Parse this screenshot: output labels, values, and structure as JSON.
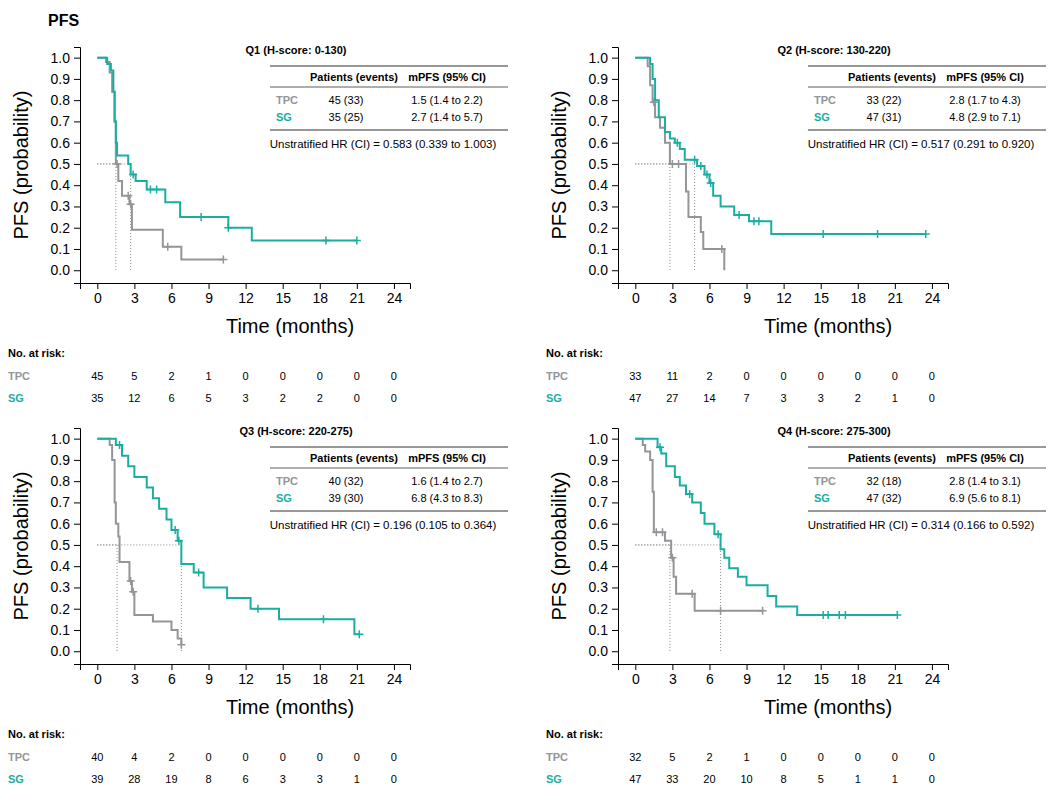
{
  "title": "PFS",
  "chart_data": [
    {
      "type": "step",
      "title": "Q1 (H-score: 0-130)",
      "x_label": "Time (months)",
      "y_label": "PFS (probability)",
      "xlim": [
        -1.4,
        25.3
      ],
      "xticks": [
        0,
        3,
        6,
        9,
        12,
        15,
        18,
        21,
        24
      ],
      "ylim": [
        -0.06,
        1.05
      ],
      "yticks": [
        {
          "value": 0,
          "label": "0.0"
        },
        {
          "value": 0.1,
          "label": "0.1"
        },
        {
          "value": 0.2,
          "label": "0.2"
        },
        {
          "value": 0.3,
          "label": "0.3"
        },
        {
          "value": 0.4,
          "label": "0.4"
        },
        {
          "value": 0.5,
          "label": "0.5"
        },
        {
          "value": 0.6,
          "label": "0.6"
        },
        {
          "value": 0.7,
          "label": "0.7"
        },
        {
          "value": 0.8,
          "label": "0.8"
        },
        {
          "value": 0.9,
          "label": "0.9"
        },
        {
          "value": 1,
          "label": "1.0"
        }
      ],
      "median_probability": 0.5,
      "table_header": [
        "Patients (events)",
        "mPFS (95% CI)"
      ],
      "hr_text": "Unstratified HR (CI) = 0.583 (0.339 to 1.003)",
      "at_risk_title": "No. at risk:",
      "series": [
        {
          "name": "TPC",
          "color": "#939598",
          "marker": "plus",
          "x": [
            0,
            0.7,
            1.0,
            1.2,
            1.4,
            1.5,
            1.7,
            2.0,
            2.6,
            2.8,
            5.3,
            6.8,
            10.2
          ],
          "values": [
            1.0,
            0.98,
            0.93,
            0.84,
            0.7,
            0.5,
            0.42,
            0.35,
            0.31,
            0.19,
            0.11,
            0.05,
            0.05
          ],
          "censor_x": [
            1.6,
            2.5,
            2.7,
            5.7,
            10.2
          ],
          "censor_values": [
            0.5,
            0.35,
            0.31,
            0.11,
            0.05
          ],
          "median": 1.5,
          "patients_events": "45 (33)",
          "mpfs": "1.5 (1.4 to 2.2)",
          "at_risk": [
            45,
            5,
            2,
            1,
            0,
            0,
            0,
            0,
            0
          ]
        },
        {
          "name": "SG",
          "color": "#1aaea3",
          "marker": "plus",
          "x": [
            0,
            0.8,
            1.1,
            1.3,
            1.4,
            1.5,
            1.6,
            2.5,
            2.7,
            3.1,
            4.0,
            5.5,
            6.7,
            10.6,
            12.5,
            21.0
          ],
          "values": [
            1.0,
            0.97,
            0.94,
            0.84,
            0.7,
            0.6,
            0.54,
            0.5,
            0.45,
            0.42,
            0.38,
            0.32,
            0.25,
            0.2,
            0.14,
            0.14
          ],
          "censor_x": [
            2.9,
            4.3,
            4.8,
            8.4,
            10.6,
            18.5,
            21.0
          ],
          "censor_values": [
            0.45,
            0.38,
            0.38,
            0.25,
            0.2,
            0.14,
            0.14
          ],
          "median": 2.7,
          "patients_events": "35 (25)",
          "mpfs": "2.7 (1.4 to 5.7)",
          "at_risk": [
            35,
            12,
            6,
            5,
            3,
            2,
            2,
            0,
            0
          ]
        }
      ]
    },
    {
      "type": "step",
      "title": "Q2 (H-score: 130-220)",
      "x_label": "Time (months)",
      "y_label": "PFS (probability)",
      "xlim": [
        -1.4,
        25.3
      ],
      "xticks": [
        0,
        3,
        6,
        9,
        12,
        15,
        18,
        21,
        24
      ],
      "ylim": [
        -0.06,
        1.05
      ],
      "yticks": [
        {
          "value": 0,
          "label": "0.0"
        },
        {
          "value": 0.1,
          "label": "0.1"
        },
        {
          "value": 0.2,
          "label": "0.2"
        },
        {
          "value": 0.3,
          "label": "0.3"
        },
        {
          "value": 0.4,
          "label": "0.4"
        },
        {
          "value": 0.5,
          "label": "0.5"
        },
        {
          "value": 0.6,
          "label": "0.6"
        },
        {
          "value": 0.7,
          "label": "0.7"
        },
        {
          "value": 0.8,
          "label": "0.8"
        },
        {
          "value": 0.9,
          "label": "0.9"
        },
        {
          "value": 1,
          "label": "1.0"
        }
      ],
      "median_probability": 0.5,
      "table_header": [
        "Patients (events)",
        "mPFS (95% CI)"
      ],
      "hr_text": "Unstratified HR (CI) = 0.517 (0.291 to 0.920)",
      "at_risk_title": "No. at risk:",
      "series": [
        {
          "name": "TPC",
          "color": "#939598",
          "marker": "plus",
          "x": [
            0,
            1.0,
            1.2,
            1.4,
            1.6,
            2.0,
            2.4,
            2.8,
            4.1,
            4.3,
            5.3,
            5.5,
            7.2
          ],
          "values": [
            1.0,
            0.96,
            0.87,
            0.79,
            0.72,
            0.67,
            0.6,
            0.5,
            0.37,
            0.25,
            0.18,
            0.1,
            0.0
          ],
          "censor_x": [
            1.5,
            3.0,
            3.5,
            7.0
          ],
          "censor_values": [
            0.79,
            0.5,
            0.5,
            0.1
          ],
          "median": 2.8,
          "patients_events": "33 (22)",
          "mpfs": "2.8 (1.7 to 4.3)",
          "at_risk": [
            33,
            11,
            2,
            0,
            0,
            0,
            0,
            0,
            0
          ]
        },
        {
          "name": "SG",
          "color": "#1aaea3",
          "marker": "plus",
          "x": [
            0,
            1.2,
            1.4,
            1.6,
            1.9,
            2.4,
            2.8,
            3.2,
            3.6,
            4.0,
            5.0,
            5.6,
            6.0,
            6.3,
            6.9,
            8.0,
            9.2,
            11.0,
            23.5
          ],
          "values": [
            1.0,
            0.97,
            0.9,
            0.8,
            0.72,
            0.65,
            0.62,
            0.6,
            0.57,
            0.52,
            0.49,
            0.45,
            0.41,
            0.35,
            0.3,
            0.26,
            0.23,
            0.17,
            0.17
          ],
          "censor_x": [
            3.4,
            4.8,
            5.3,
            5.8,
            6.1,
            8.4,
            9.6,
            10.0,
            15.2,
            19.6,
            23.5
          ],
          "censor_values": [
            0.6,
            0.52,
            0.49,
            0.45,
            0.41,
            0.26,
            0.23,
            0.23,
            0.17,
            0.17,
            0.17
          ],
          "median": 4.8,
          "patients_events": "47 (31)",
          "mpfs": "4.8 (2.9 to 7.1)",
          "at_risk": [
            47,
            27,
            14,
            7,
            3,
            3,
            2,
            1,
            0
          ]
        }
      ]
    },
    {
      "type": "step",
      "title": "Q3 (H-score: 220-275)",
      "x_label": "Time (months)",
      "y_label": "PFS (probability)",
      "xlim": [
        -1.4,
        25.3
      ],
      "xticks": [
        0,
        3,
        6,
        9,
        12,
        15,
        18,
        21,
        24
      ],
      "ylim": [
        -0.06,
        1.05
      ],
      "yticks": [
        {
          "value": 0,
          "label": "0.0"
        },
        {
          "value": 0.1,
          "label": "0.1"
        },
        {
          "value": 0.2,
          "label": "0.2"
        },
        {
          "value": 0.3,
          "label": "0.3"
        },
        {
          "value": 0.4,
          "label": "0.4"
        },
        {
          "value": 0.5,
          "label": "0.5"
        },
        {
          "value": 0.6,
          "label": "0.6"
        },
        {
          "value": 0.7,
          "label": "0.7"
        },
        {
          "value": 0.8,
          "label": "0.8"
        },
        {
          "value": 0.9,
          "label": "0.9"
        },
        {
          "value": 1,
          "label": "1.0"
        }
      ],
      "median_probability": 0.5,
      "table_header": [
        "Patients (events)",
        "mPFS (95% CI)"
      ],
      "hr_text": "Unstratified HR (CI) = 0.196 (0.105 to 0.364)",
      "at_risk_title": "No. at risk:",
      "series": [
        {
          "name": "TPC",
          "color": "#939598",
          "marker": "plus",
          "x": [
            0,
            1.0,
            1.2,
            1.4,
            1.5,
            1.7,
            1.8,
            2.6,
            2.8,
            3.0,
            4.5,
            6.0,
            6.5,
            6.8
          ],
          "values": [
            1.0,
            0.97,
            0.9,
            0.7,
            0.6,
            0.54,
            0.42,
            0.33,
            0.28,
            0.17,
            0.14,
            0.1,
            0.06,
            0.03
          ],
          "censor_x": [
            2.7,
            2.9,
            6.8
          ],
          "censor_values": [
            0.33,
            0.28,
            0.03
          ],
          "median": 1.6,
          "patients_events": "40 (32)",
          "mpfs": "1.6 (1.4 to 2.7)",
          "at_risk": [
            40,
            4,
            2,
            0,
            0,
            0,
            0,
            0,
            0
          ]
        },
        {
          "name": "SG",
          "color": "#1aaea3",
          "marker": "plus",
          "x": [
            0,
            1.5,
            2.0,
            2.5,
            3.0,
            4.0,
            4.5,
            5.0,
            5.6,
            6.0,
            6.5,
            6.8,
            7.8,
            8.6,
            10.5,
            12.4,
            14.7,
            20.8,
            21.2
          ],
          "values": [
            1.0,
            0.97,
            0.92,
            0.87,
            0.82,
            0.77,
            0.72,
            0.67,
            0.62,
            0.57,
            0.52,
            0.41,
            0.37,
            0.3,
            0.25,
            0.2,
            0.15,
            0.08,
            0.08
          ],
          "censor_x": [
            1.8,
            6.3,
            6.6,
            8.2,
            13.0,
            18.3,
            21.2
          ],
          "censor_values": [
            0.97,
            0.57,
            0.52,
            0.37,
            0.2,
            0.15,
            0.08
          ],
          "median": 6.8,
          "patients_events": "39 (30)",
          "mpfs": "6.8 (4.3 to 8.3)",
          "at_risk": [
            39,
            28,
            19,
            8,
            6,
            3,
            3,
            1,
            0
          ]
        }
      ]
    },
    {
      "type": "step",
      "title": "Q4 (H-score: 275-300)",
      "x_label": "Time (months)",
      "y_label": "PFS (probability)",
      "xlim": [
        -1.4,
        25.3
      ],
      "xticks": [
        0,
        3,
        6,
        9,
        12,
        15,
        18,
        21,
        24
      ],
      "ylim": [
        -0.06,
        1.05
      ],
      "yticks": [
        {
          "value": 0,
          "label": "0.0"
        },
        {
          "value": 0.1,
          "label": "0.1"
        },
        {
          "value": 0.2,
          "label": "0.2"
        },
        {
          "value": 0.3,
          "label": "0.3"
        },
        {
          "value": 0.4,
          "label": "0.4"
        },
        {
          "value": 0.5,
          "label": "0.5"
        },
        {
          "value": 0.6,
          "label": "0.6"
        },
        {
          "value": 0.7,
          "label": "0.7"
        },
        {
          "value": 0.8,
          "label": "0.8"
        },
        {
          "value": 0.9,
          "label": "0.9"
        },
        {
          "value": 1,
          "label": "1.0"
        }
      ],
      "median_probability": 0.5,
      "table_header": [
        "Patients (events)",
        "mPFS (95% CI)"
      ],
      "hr_text": "Unstratified HR (CI) = 0.314 (0.166 to 0.592)",
      "at_risk_title": "No. at risk:",
      "series": [
        {
          "name": "TPC",
          "color": "#939598",
          "marker": "plus",
          "x": [
            0,
            0.6,
            0.8,
            1.2,
            1.4,
            1.5,
            2.4,
            2.9,
            3.1,
            3.3,
            4.8,
            10.3
          ],
          "values": [
            1.0,
            0.97,
            0.94,
            0.9,
            0.75,
            0.56,
            0.52,
            0.44,
            0.35,
            0.27,
            0.19,
            0.19
          ],
          "censor_x": [
            1.7,
            2.2,
            3.0,
            4.6,
            6.9,
            10.3
          ],
          "censor_values": [
            0.56,
            0.56,
            0.44,
            0.27,
            0.19,
            0.19
          ],
          "median": 2.8,
          "patients_events": "32 (18)",
          "mpfs": "2.8 (1.4 to 3.1)",
          "at_risk": [
            32,
            5,
            2,
            1,
            0,
            0,
            0,
            0,
            0
          ]
        },
        {
          "name": "SG",
          "color": "#1aaea3",
          "marker": "plus",
          "x": [
            0,
            1.8,
            2.1,
            2.5,
            3.2,
            3.6,
            4.1,
            4.6,
            5.3,
            5.6,
            6.4,
            6.9,
            7.2,
            7.6,
            8.3,
            9.0,
            10.7,
            11.4,
            13.1,
            21.2
          ],
          "values": [
            1.0,
            0.96,
            0.93,
            0.87,
            0.82,
            0.78,
            0.74,
            0.7,
            0.65,
            0.6,
            0.55,
            0.48,
            0.44,
            0.39,
            0.35,
            0.31,
            0.26,
            0.21,
            0.17,
            0.17
          ],
          "censor_x": [
            2.0,
            4.4,
            6.7,
            15.2,
            15.6,
            16.5,
            17.0,
            21.2
          ],
          "censor_values": [
            0.96,
            0.74,
            0.55,
            0.17,
            0.17,
            0.17,
            0.17,
            0.17
          ],
          "median": 6.9,
          "patients_events": "47 (32)",
          "mpfs": "6.9 (5.6 to 8.1)",
          "at_risk": [
            47,
            33,
            20,
            10,
            8,
            5,
            1,
            1,
            0
          ]
        }
      ]
    }
  ]
}
